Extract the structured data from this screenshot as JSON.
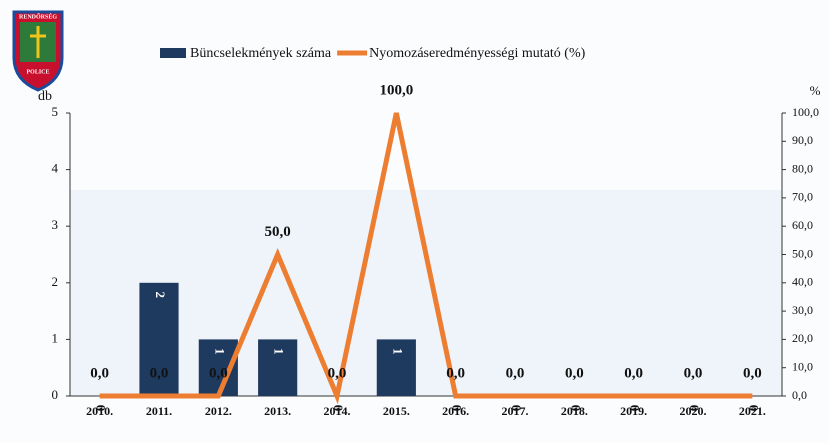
{
  "chart_data": {
    "type": "combo",
    "logo": {
      "top": "RENDŐRSÉG",
      "bottom": "POLICE"
    },
    "y_label": "db",
    "y2_label": "%",
    "categories": [
      "2010.",
      "2011.",
      "2012.",
      "2013.",
      "2014.",
      "2015.",
      "2016.",
      "2017.",
      "2018.",
      "2019.",
      "2020.",
      "2021."
    ],
    "series": [
      {
        "name": "Büncselekmények száma",
        "type": "bar",
        "color": "#1f3a5f",
        "values": [
          0,
          2,
          1,
          1,
          0,
          1,
          0,
          0,
          0,
          0,
          0,
          0
        ]
      },
      {
        "name": "Nyomozáseredményességi mutató (%)",
        "type": "line",
        "axis": "y2",
        "color": "#ed7d31",
        "values": [
          0,
          0,
          0,
          50,
          0,
          100,
          0,
          0,
          0,
          0,
          0,
          0
        ],
        "value_labels": [
          "0,0",
          "0,0",
          "0,0",
          "50,0",
          "0,0",
          "100,0",
          "0,0",
          "0,0",
          "0,0",
          "0,0",
          "0,0",
          "0,0"
        ]
      }
    ],
    "ylim": [
      0,
      5
    ],
    "yticks": [
      0,
      1,
      2,
      3,
      4,
      5
    ],
    "y2lim": [
      0,
      100
    ],
    "y2ticks": [
      {
        "value": 0,
        "label": "0,0"
      },
      {
        "value": 10,
        "label": "10,0"
      },
      {
        "value": 20,
        "label": "20,0"
      },
      {
        "value": 30,
        "label": "30,0"
      },
      {
        "value": 40,
        "label": "40,0"
      },
      {
        "value": 50,
        "label": "50,0"
      },
      {
        "value": 60,
        "label": "60,0"
      },
      {
        "value": 70,
        "label": "70,0"
      },
      {
        "value": 80,
        "label": "80,0"
      },
      {
        "value": 90,
        "label": "90,0"
      },
      {
        "value": 100,
        "label": "100,0"
      }
    ],
    "legend": "top"
  }
}
